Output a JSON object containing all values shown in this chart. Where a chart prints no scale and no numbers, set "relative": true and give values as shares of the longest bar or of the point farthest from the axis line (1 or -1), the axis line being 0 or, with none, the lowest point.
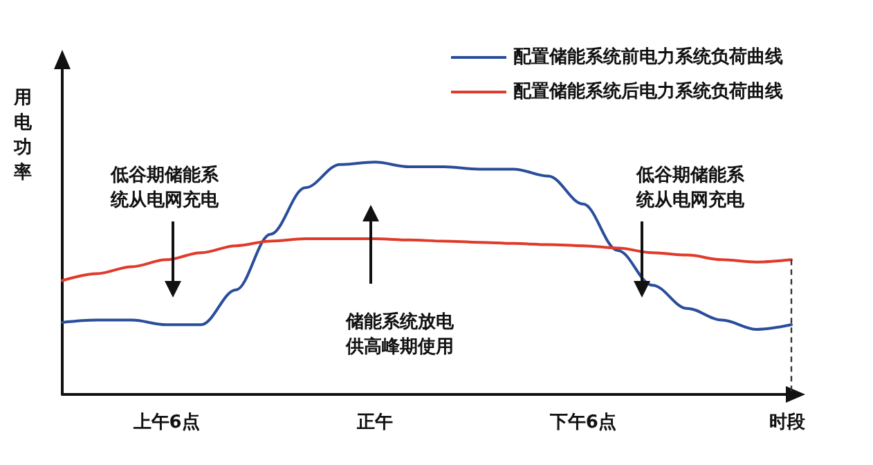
{
  "chart_data": {
    "type": "line",
    "relative": true,
    "xlabel": "时段",
    "ylabel": "用电功率",
    "categories": [
      null,
      null,
      null,
      "上午6点",
      null,
      null,
      null,
      null,
      null,
      "正午",
      null,
      null,
      null,
      null,
      null,
      "下午6点",
      null,
      null,
      null,
      null,
      null,
      null
    ],
    "legend": "top right",
    "grid": false,
    "marker": "none",
    "line_style": "solid",
    "series": [
      {
        "name": "配置储能系统前电力系统负荷曲线",
        "color": "#2a4d9b",
        "values": [
          0.31,
          0.32,
          0.32,
          0.3,
          0.3,
          0.45,
          0.69,
          0.89,
          0.99,
          1,
          0.98,
          0.98,
          0.97,
          0.97,
          0.94,
          0.82,
          0.62,
          0.47,
          0.37,
          0.32,
          0.28,
          0.3
        ]
      },
      {
        "name": "配置储能系统后电力系统负荷曲线",
        "color": "#e03a2a",
        "values": [
          0.49,
          0.52,
          0.55,
          0.58,
          0.61,
          0.64,
          0.66,
          0.67,
          0.67,
          0.67,
          0.665,
          0.66,
          0.655,
          0.65,
          0.645,
          0.64,
          0.63,
          0.61,
          0.6,
          0.58,
          0.57,
          0.58
        ]
      }
    ],
    "annotations": [
      "低谷期储能系统从电网充电",
      "储能系统放电供高峰期使用",
      "低谷期储能系统从电网充电"
    ]
  }
}
